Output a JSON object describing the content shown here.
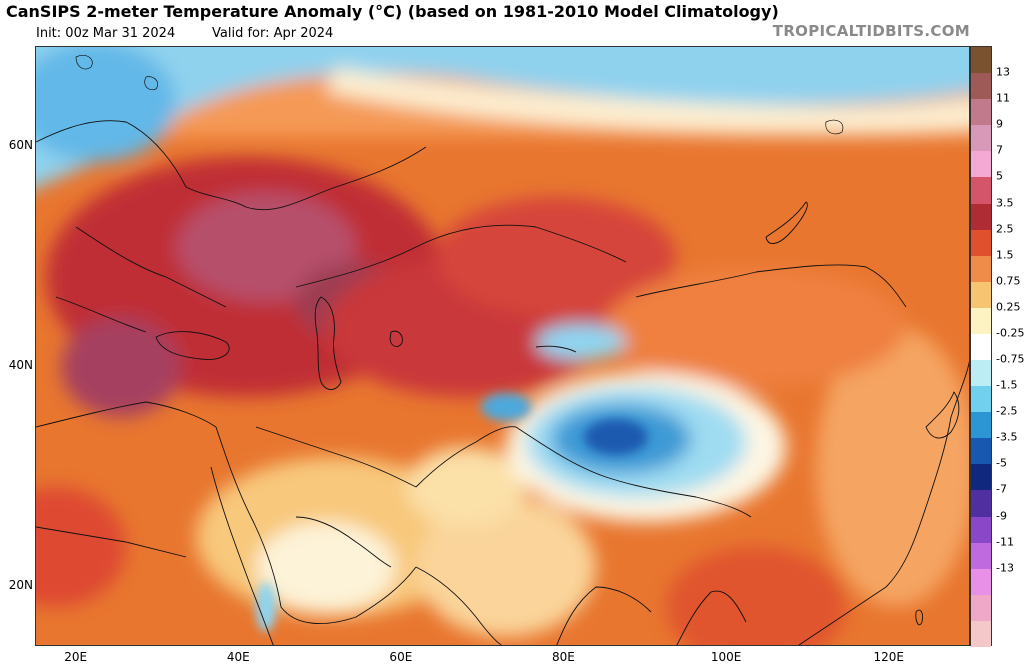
{
  "header": {
    "title": "CanSIPS 2-meter Temperature Anomaly (°C) (based on 1981-2010 Model Climatology)",
    "init_label": "Init: 00z Mar 31 2024",
    "valid_label": "Valid for: Apr 2024",
    "brand": "TROPICALTIDBITS.COM"
  },
  "map": {
    "extent": {
      "lon_min": 15,
      "lon_max": 130,
      "lat_min": 14.5,
      "lat_max": 69
    },
    "lat_ticks": [
      {
        "value": 60,
        "label": "60N"
      },
      {
        "value": 40,
        "label": "40N"
      },
      {
        "value": 20,
        "label": "20N"
      }
    ],
    "lon_ticks": [
      {
        "value": 20,
        "label": "20E"
      },
      {
        "value": 40,
        "label": "40E"
      },
      {
        "value": 60,
        "label": "60E"
      },
      {
        "value": 80,
        "label": "80E"
      },
      {
        "value": 100,
        "label": "100E"
      },
      {
        "value": 120,
        "label": "120E"
      }
    ]
  },
  "colorbar": {
    "labels": [
      "13",
      "11",
      "9",
      "7",
      "5",
      "3.5",
      "2.5",
      "1.5",
      "0.75",
      "0.25",
      "-0.25",
      "-0.75",
      "-1.5",
      "-2.5",
      "-3.5",
      "-5",
      "-7",
      "-9",
      "-11",
      "-13"
    ],
    "colors": [
      "#7a5230",
      "#9e5a56",
      "#c07a8c",
      "#d898b8",
      "#f4a8d4",
      "#d4546a",
      "#b02c34",
      "#e0502c",
      "#f08c4a",
      "#f7c472",
      "#fdf2c2",
      "#ffffff",
      "#bcecf4",
      "#70d0ee",
      "#2c96d4",
      "#1858b0",
      "#10287e",
      "#5030a0",
      "#8a48c8",
      "#c06ae0",
      "#e890e8",
      "#f0a8c8",
      "#f4c8c8"
    ]
  }
}
